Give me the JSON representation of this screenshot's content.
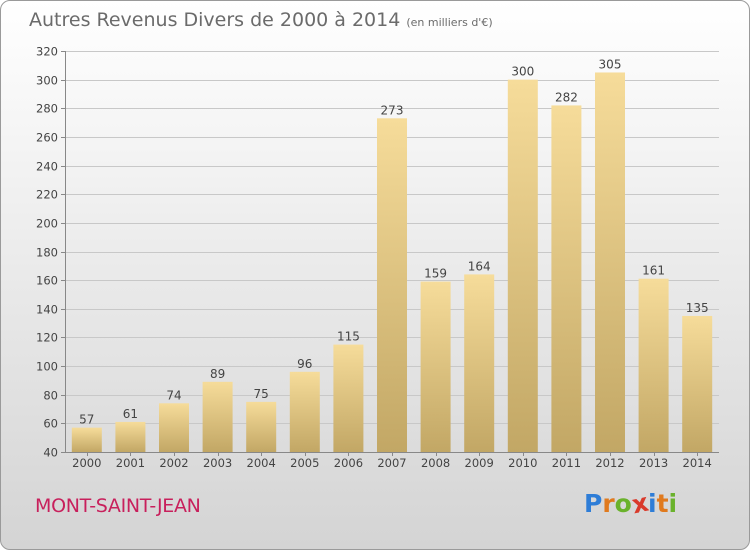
{
  "title": "Autres Revenus Divers de 2000 à 2014",
  "subtitle": "(en milliers d'€)",
  "location": "MONT-SAINT-JEAN",
  "logo": {
    "letters": [
      "P",
      "r",
      "o",
      "x",
      "i",
      "t",
      "i"
    ],
    "colors": [
      "#2e7dd7",
      "#e07a1e",
      "#6ab22c",
      "#d93a2b",
      "#2e7dd7",
      "#e07a1e",
      "#6ab22c"
    ]
  },
  "colors": {
    "bar_top": "#f6dc9a",
    "bar_bottom": "#c2a765",
    "grid": "#c8c8c8",
    "title": "#6b6b6b",
    "location": "#c8205c"
  },
  "chart_data": {
    "type": "bar",
    "title": "Autres Revenus Divers de 2000 à 2014",
    "subtitle": "(en milliers d'€)",
    "categories": [
      "2000",
      "2001",
      "2002",
      "2003",
      "2004",
      "2005",
      "2006",
      "2007",
      "2008",
      "2009",
      "2010",
      "2011",
      "2012",
      "2013",
      "2014"
    ],
    "values": [
      57,
      61,
      74,
      89,
      75,
      96,
      115,
      273,
      159,
      164,
      300,
      282,
      305,
      161,
      135
    ],
    "ylim": [
      40,
      320
    ],
    "yticks": [
      40,
      60,
      80,
      100,
      120,
      140,
      160,
      180,
      200,
      220,
      240,
      260,
      280,
      300,
      320
    ],
    "grid": true,
    "xlabel": "",
    "ylabel": ""
  }
}
